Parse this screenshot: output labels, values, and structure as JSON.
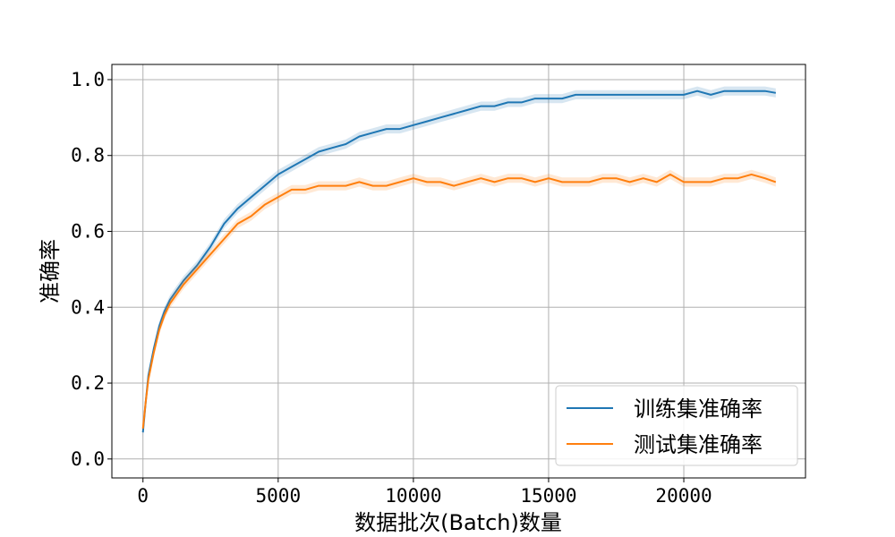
{
  "chart_data": {
    "type": "line",
    "title": "",
    "xlabel": "数据批次(Batch)数量",
    "ylabel": "准确率",
    "xlim": [
      -1150,
      24500
    ],
    "ylim": [
      -0.05,
      1.04
    ],
    "xticks": [
      0,
      5000,
      10000,
      15000,
      20000
    ],
    "xtick_labels": [
      "0",
      "5000",
      "10000",
      "15000",
      "20000"
    ],
    "yticks": [
      0.0,
      0.2,
      0.4,
      0.6,
      0.8,
      1.0
    ],
    "ytick_labels": [
      "0.0",
      "0.2",
      "0.4",
      "0.6",
      "0.8",
      "1.0"
    ],
    "grid": true,
    "legend_position": "bottom-right",
    "series": [
      {
        "name": "训练集准确率",
        "color": "#1f77b4",
        "x": [
          0,
          100,
          200,
          400,
          600,
          800,
          1000,
          1500,
          2000,
          2500,
          3000,
          3500,
          4000,
          4500,
          5000,
          5500,
          6000,
          6500,
          7000,
          7500,
          8000,
          8500,
          9000,
          9500,
          10000,
          10500,
          11000,
          11500,
          12000,
          12500,
          13000,
          13500,
          14000,
          14500,
          15000,
          15500,
          16000,
          16500,
          17000,
          17500,
          18000,
          18500,
          19000,
          19500,
          20000,
          20500,
          21000,
          21500,
          22000,
          22500,
          23000,
          23400
        ],
        "y": [
          0.07,
          0.15,
          0.22,
          0.29,
          0.35,
          0.39,
          0.42,
          0.47,
          0.51,
          0.56,
          0.62,
          0.66,
          0.69,
          0.72,
          0.75,
          0.77,
          0.79,
          0.81,
          0.82,
          0.83,
          0.85,
          0.86,
          0.87,
          0.87,
          0.88,
          0.89,
          0.9,
          0.91,
          0.92,
          0.93,
          0.93,
          0.94,
          0.94,
          0.95,
          0.95,
          0.95,
          0.96,
          0.96,
          0.96,
          0.96,
          0.96,
          0.96,
          0.96,
          0.96,
          0.96,
          0.97,
          0.96,
          0.97,
          0.97,
          0.97,
          0.97,
          0.965
        ]
      },
      {
        "name": "测试集准确率",
        "color": "#ff7f0e",
        "x": [
          0,
          100,
          200,
          400,
          600,
          800,
          1000,
          1500,
          2000,
          2500,
          3000,
          3500,
          4000,
          4500,
          5000,
          5500,
          6000,
          6500,
          7000,
          7500,
          8000,
          8500,
          9000,
          9500,
          10000,
          10500,
          11000,
          11500,
          12000,
          12500,
          13000,
          13500,
          14000,
          14500,
          15000,
          15500,
          16000,
          16500,
          17000,
          17500,
          18000,
          18500,
          19000,
          19500,
          20000,
          20500,
          21000,
          21500,
          22000,
          22500,
          23000,
          23400
        ],
        "y": [
          0.08,
          0.15,
          0.21,
          0.28,
          0.34,
          0.38,
          0.41,
          0.46,
          0.5,
          0.54,
          0.58,
          0.62,
          0.64,
          0.67,
          0.69,
          0.71,
          0.71,
          0.72,
          0.72,
          0.72,
          0.73,
          0.72,
          0.72,
          0.73,
          0.74,
          0.73,
          0.73,
          0.72,
          0.73,
          0.74,
          0.73,
          0.74,
          0.74,
          0.73,
          0.74,
          0.73,
          0.73,
          0.73,
          0.74,
          0.74,
          0.73,
          0.74,
          0.73,
          0.75,
          0.73,
          0.73,
          0.73,
          0.74,
          0.74,
          0.75,
          0.74,
          0.73
        ]
      }
    ]
  }
}
